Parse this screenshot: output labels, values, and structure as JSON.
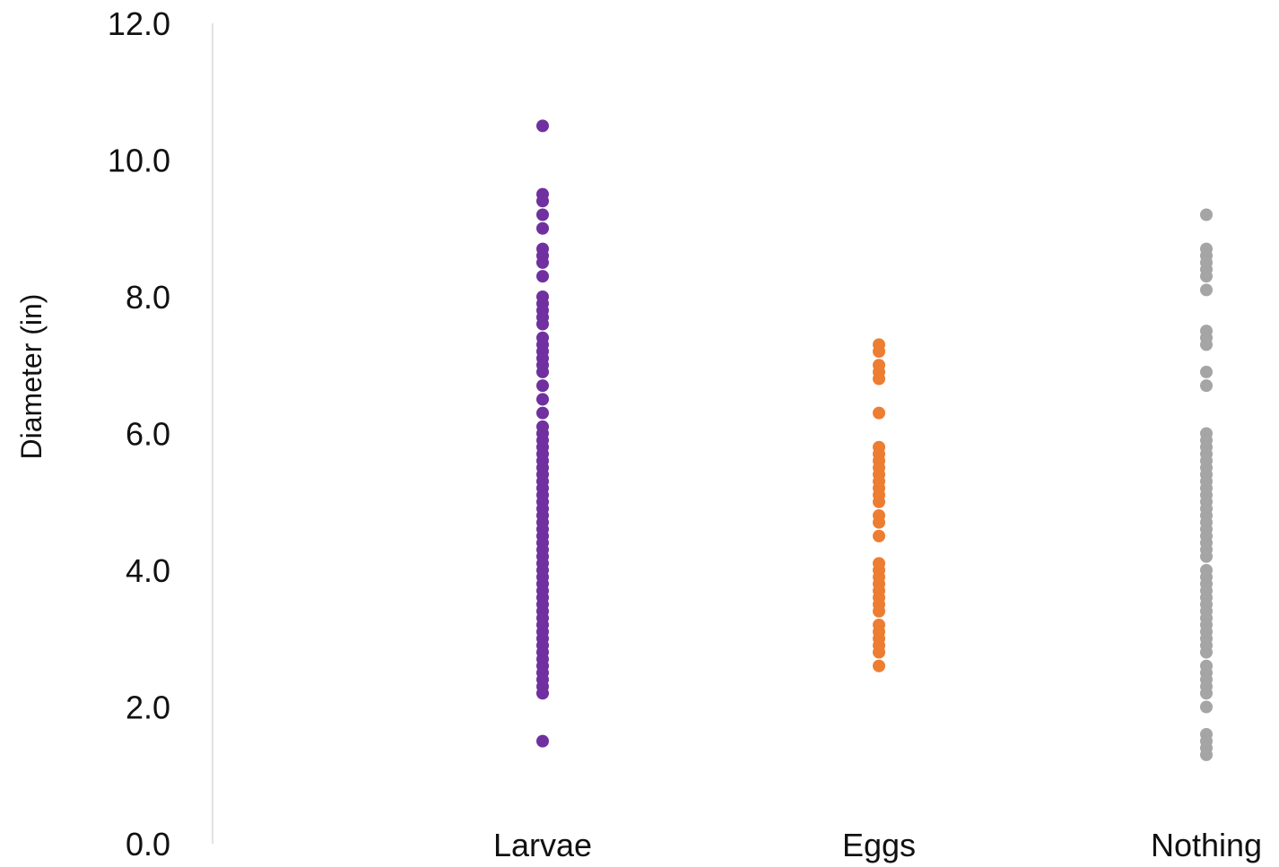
{
  "chart_data": {
    "type": "scatter",
    "title": "",
    "xlabel": "",
    "ylabel": "Diameter (in)",
    "ylim": [
      0,
      12
    ],
    "yticks": [
      "0.0",
      "2.0",
      "4.0",
      "6.0",
      "8.0",
      "10.0",
      "12.0"
    ],
    "grid": false,
    "legend": "none",
    "categories": [
      "Larvae",
      "Eggs",
      "Nothing"
    ],
    "series": [
      {
        "category": "Larvae",
        "color": "#7030A0",
        "values": [
          10.5,
          9.5,
          9.4,
          9.2,
          9.0,
          8.7,
          8.6,
          8.5,
          8.3,
          8.0,
          7.9,
          7.8,
          7.7,
          7.6,
          7.4,
          7.3,
          7.2,
          7.1,
          7.0,
          6.9,
          6.7,
          6.5,
          6.3,
          6.1,
          6.0,
          5.9,
          5.8,
          5.7,
          5.6,
          5.5,
          5.4,
          5.3,
          5.2,
          5.1,
          5.0,
          4.9,
          4.8,
          4.7,
          4.6,
          4.5,
          4.4,
          4.3,
          4.2,
          4.1,
          4.0,
          3.9,
          3.8,
          3.7,
          3.6,
          3.5,
          3.4,
          3.3,
          3.2,
          3.1,
          3.0,
          2.9,
          2.8,
          2.7,
          2.6,
          2.5,
          2.4,
          2.3,
          2.2,
          1.5
        ]
      },
      {
        "category": "Eggs",
        "color": "#ED7D31",
        "values": [
          7.3,
          7.2,
          7.0,
          6.9,
          6.8,
          6.3,
          5.8,
          5.7,
          5.6,
          5.5,
          5.4,
          5.3,
          5.2,
          5.1,
          5.0,
          4.8,
          4.7,
          4.5,
          4.1,
          4.0,
          3.9,
          3.8,
          3.7,
          3.6,
          3.5,
          3.4,
          3.2,
          3.1,
          3.0,
          2.9,
          2.8,
          2.6
        ]
      },
      {
        "category": "Nothing",
        "color": "#A5A5A5",
        "values": [
          9.2,
          8.7,
          8.6,
          8.5,
          8.4,
          8.3,
          8.1,
          7.5,
          7.4,
          7.3,
          6.9,
          6.7,
          6.0,
          5.9,
          5.8,
          5.7,
          5.6,
          5.5,
          5.4,
          5.3,
          5.2,
          5.1,
          5.0,
          4.9,
          4.8,
          4.7,
          4.6,
          4.5,
          4.4,
          4.3,
          4.2,
          4.0,
          3.9,
          3.8,
          3.7,
          3.6,
          3.5,
          3.4,
          3.3,
          3.2,
          3.1,
          3.0,
          2.9,
          2.8,
          2.6,
          2.5,
          2.4,
          2.3,
          2.2,
          2.0,
          1.6,
          1.5,
          1.4,
          1.3
        ]
      }
    ]
  }
}
